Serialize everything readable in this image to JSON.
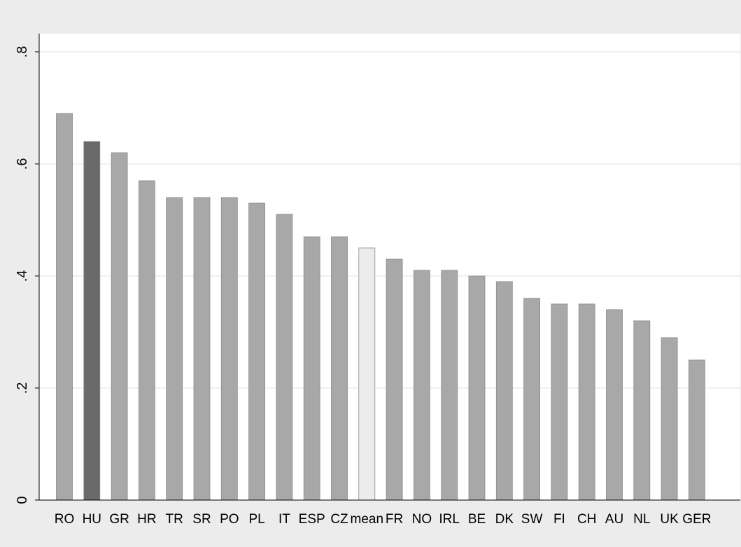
{
  "chart_data": {
    "type": "bar",
    "categories": [
      "RO",
      "HU",
      "GR",
      "HR",
      "TR",
      "SR",
      "PO",
      "PL",
      "IT",
      "ESP",
      "CZ",
      "mean",
      "FR",
      "NO",
      "IRL",
      "BE",
      "DK",
      "SW",
      "FI",
      "CH",
      "AU",
      "NL",
      "UK",
      "GER"
    ],
    "values": [
      0.69,
      0.64,
      0.62,
      0.57,
      0.54,
      0.54,
      0.54,
      0.53,
      0.51,
      0.47,
      0.47,
      0.45,
      0.43,
      0.41,
      0.41,
      0.4,
      0.39,
      0.36,
      0.35,
      0.35,
      0.34,
      0.32,
      0.29,
      0.25
    ],
    "ylim": [
      0,
      0.8
    ],
    "yticks": [
      0,
      0.2,
      0.4,
      0.6,
      0.8
    ],
    "ytick_labels": [
      "0",
      ".2",
      ".4",
      ".6",
      ".8"
    ],
    "title": "",
    "xlabel": "",
    "ylabel": "",
    "grid": true,
    "legend": "none",
    "colors": {
      "default_bar": "#a8a8a8",
      "highlight_bar": "#6a6a6a",
      "mean_bar": "#ececec",
      "bar_border": "#8a8a8a",
      "plot_background": "#ffffff",
      "page_background": "#ececec",
      "gridline": "#e2e2e2",
      "axis": "#000000",
      "text": "#000000"
    },
    "highlight": "HU",
    "mean_category": "mean"
  }
}
